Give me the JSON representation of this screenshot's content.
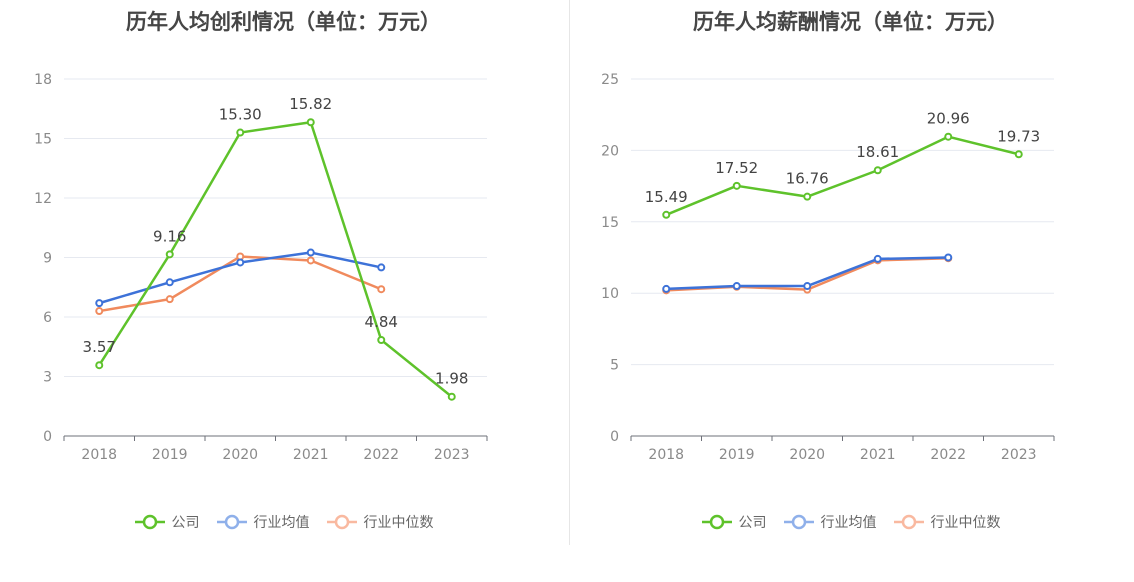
{
  "chart_data": [
    {
      "type": "line",
      "title": "历年人均创利情况（单位：万元）",
      "categories": [
        "2018",
        "2019",
        "2020",
        "2021",
        "2022",
        "2023"
      ],
      "ylim": [
        0,
        18
      ],
      "yticks": [
        "0",
        "3",
        "6",
        "9",
        "12",
        "15",
        "18"
      ],
      "grid": true,
      "legend_position": "bottom",
      "series": [
        {
          "name": "公司",
          "color": "#5ec22b",
          "values": [
            3.57,
            9.16,
            15.3,
            15.82,
            4.84,
            1.98
          ],
          "labels": [
            "3.57",
            "9.16",
            "15.30",
            "15.82",
            "4.84",
            "1.98"
          ]
        },
        {
          "name": "行业均值",
          "color": "#3d72d8",
          "legend_color": "#8fb0ea",
          "values": [
            6.7,
            7.75,
            8.75,
            9.25,
            8.5,
            null
          ]
        },
        {
          "name": "行业中位数",
          "color": "#f08a5d",
          "legend_color": "#f9b9a0",
          "values": [
            6.3,
            6.9,
            9.05,
            8.85,
            7.4,
            null
          ]
        }
      ]
    },
    {
      "type": "line",
      "title": "历年人均薪酬情况（单位：万元）",
      "categories": [
        "2018",
        "2019",
        "2020",
        "2021",
        "2022",
        "2023"
      ],
      "ylim": [
        0,
        25
      ],
      "yticks": [
        "0",
        "5",
        "10",
        "15",
        "20",
        "25"
      ],
      "grid": true,
      "legend_position": "bottom",
      "series": [
        {
          "name": "公司",
          "color": "#5ec22b",
          "values": [
            15.49,
            17.52,
            16.76,
            18.61,
            20.96,
            19.73
          ],
          "labels": [
            "15.49",
            "17.52",
            "16.76",
            "18.61",
            "20.96",
            "19.73"
          ]
        },
        {
          "name": "行业均值",
          "color": "#3d72d8",
          "legend_color": "#8fb0ea",
          "values": [
            10.3,
            10.5,
            10.5,
            12.4,
            12.5,
            null
          ]
        },
        {
          "name": "行业中位数",
          "color": "#f08a5d",
          "legend_color": "#f9b9a0",
          "values": [
            10.2,
            10.45,
            10.25,
            12.3,
            12.45,
            null
          ]
        }
      ]
    }
  ]
}
